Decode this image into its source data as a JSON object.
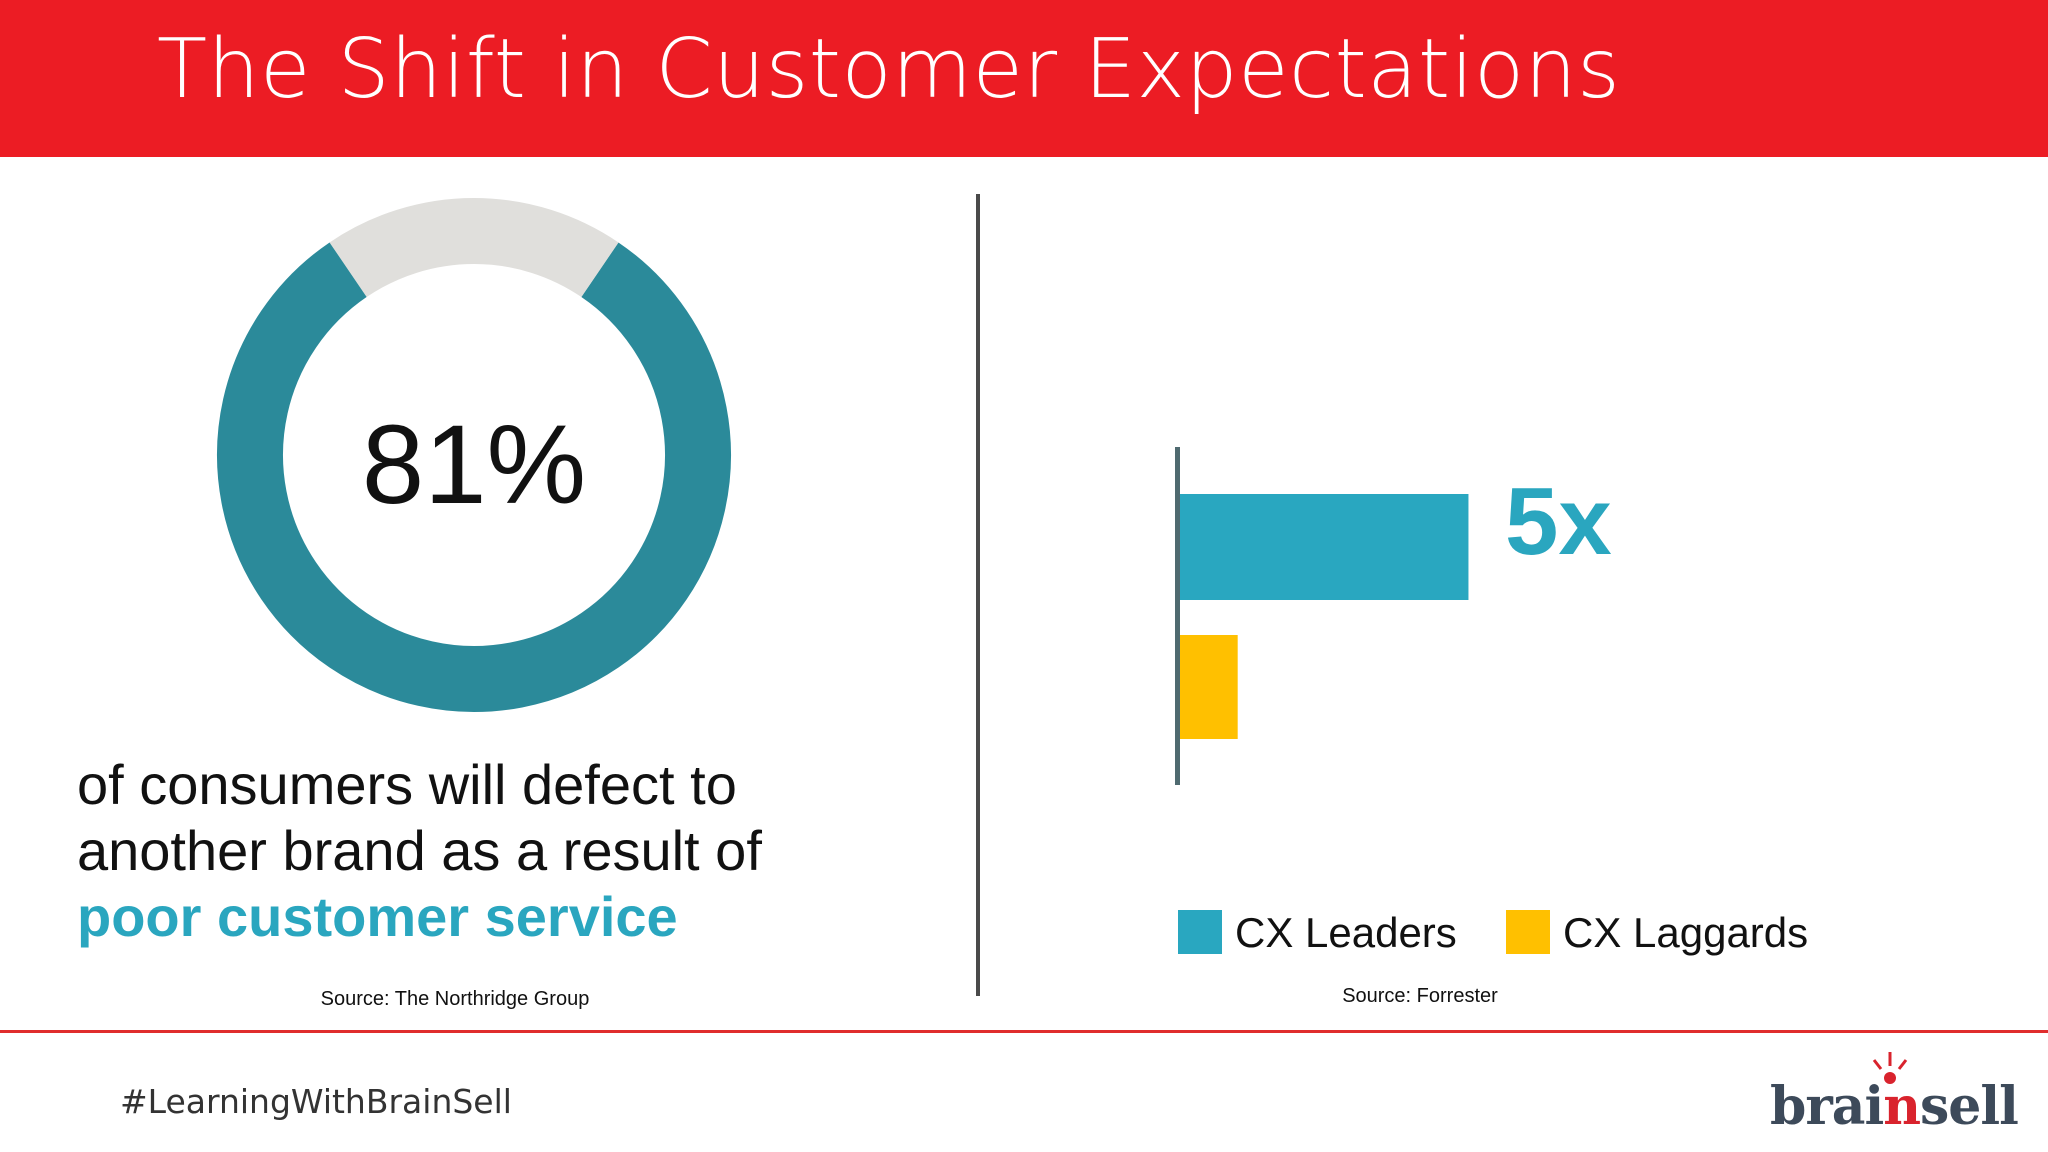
{
  "slide": {
    "title": "The Shift in Customer Expectations",
    "hashtag": "#LearningWithBrainSell"
  },
  "left_panel": {
    "stat": "81%",
    "stat_value": 81,
    "text_line1": "of consumers will defect to",
    "text_line2": "another brand as a result of",
    "highlight": "poor customer service",
    "source": "Source: The Northridge Group"
  },
  "right_panel": {
    "big_label": "5x",
    "source": "Source: Forrester",
    "legend": [
      {
        "label": "CX Leaders",
        "color": "#29a7c0"
      },
      {
        "label": "CX Laggards",
        "color": "#ffc000"
      }
    ]
  },
  "logo": {
    "part1": "brai",
    "accent": "n",
    "part2": "sell"
  },
  "colors": {
    "header_red": "#ec1c24",
    "teal": "#29a7c0",
    "donut_teal": "#2b8a9a",
    "donut_rest": "#e0dfdc",
    "amber": "#ffc000"
  },
  "chart_data": [
    {
      "type": "pie",
      "values": [
        81,
        19
      ],
      "categories": [
        "consumers who will defect",
        "remainder"
      ],
      "title": "81%"
    },
    {
      "type": "bar",
      "orientation": "horizontal",
      "categories": [
        "CX Leaders",
        "CX Laggards"
      ],
      "values": [
        5,
        1
      ],
      "data_labels": [
        "5x",
        ""
      ],
      "xlim": [
        0,
        5.2
      ],
      "legend": "bottom"
    }
  ]
}
